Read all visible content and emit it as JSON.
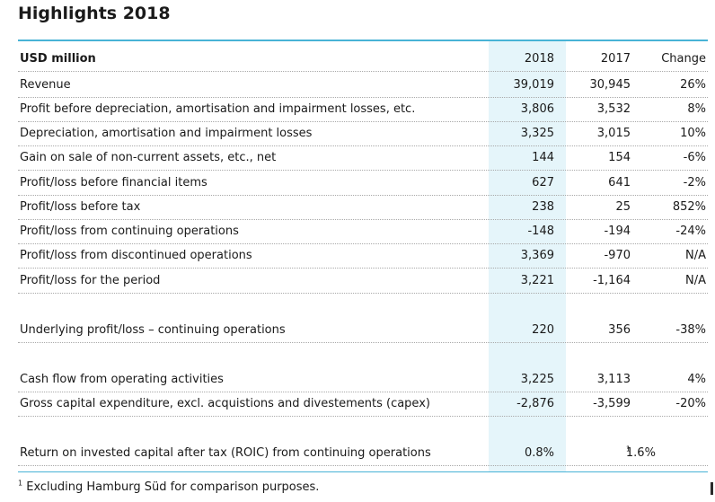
{
  "title": "Highlights 2018",
  "header": {
    "label": "USD million",
    "col_2018": "2018",
    "col_2017": "2017",
    "change": "Change"
  },
  "rows": [
    {
      "label": "Revenue",
      "v2018": "39,019",
      "v2017": "30,945",
      "change": "26%"
    },
    {
      "label": "Profit before depreciation, amortisation and impairment losses, etc.",
      "v2018": "3,806",
      "v2017": "3,532",
      "change": "8%"
    },
    {
      "label": "Depreciation, amortisation and impairment losses",
      "v2018": "3,325",
      "v2017": "3,015",
      "change": "10%"
    },
    {
      "label": "Gain on sale of non-current assets, etc., net",
      "v2018": "144",
      "v2017": "154",
      "change": "-6%"
    },
    {
      "label": "Profit/loss before financial items",
      "v2018": "627",
      "v2017": "641",
      "change": "-2%"
    },
    {
      "label": "Profit/loss before tax",
      "v2018": "238",
      "v2017": "25",
      "change": "852%"
    },
    {
      "label": "Profit/loss from continuing operations",
      "v2018": "-148",
      "v2017": "-194",
      "change": "-24%"
    },
    {
      "label": "Profit/loss from discontinued operations",
      "v2018": "3,369",
      "v2017": "-970",
      "change": "N/A"
    },
    {
      "label": "Profit/loss for the period",
      "v2018": "3,221",
      "v2017": "-1,164",
      "change": "N/A"
    },
    {
      "label": "Underlying profit/loss – continuing operations",
      "v2018": "220",
      "v2017": "356",
      "change": "-38%"
    },
    {
      "label": "Cash flow from operating activities",
      "v2018": "3,225",
      "v2017": "3,113",
      "change": "4%"
    },
    {
      "label": "Gross capital expenditure, excl. acquistions and divestements (capex)",
      "v2018": "-2,876",
      "v2017": "-3,599",
      "change": "-20%"
    },
    {
      "label": "Return on invested capital after tax (ROIC) from continuing operations",
      "v2018": "0.8%",
      "v2017": "1.6%",
      "v2017_note": "1",
      "change": ""
    }
  ],
  "footnote": {
    "marker": "1",
    "text": "Excluding Hamburg Süd for comparison purposes."
  },
  "colors": {
    "accent_line": "#48b3d6",
    "highlight_column": "#e5f5fa"
  }
}
